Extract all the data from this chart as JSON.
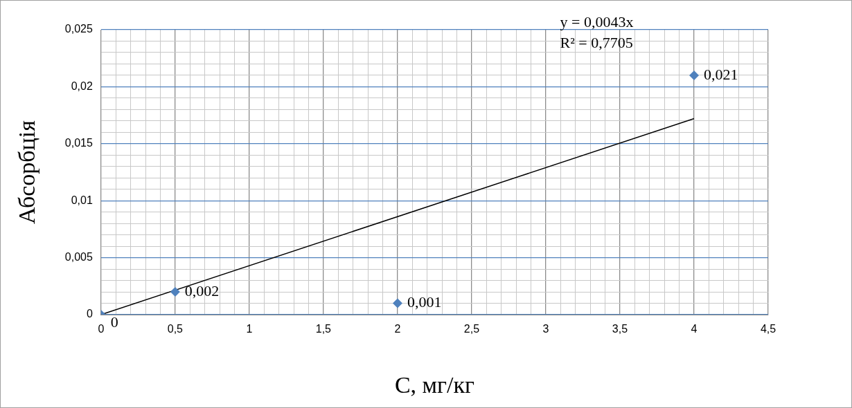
{
  "chart_data": {
    "type": "scatter",
    "xlabel": "С, мг/кг",
    "ylabel": "Абсорбція",
    "series": [
      {
        "color": "#4f81bd",
        "x": [
          0,
          0.5,
          2,
          4
        ],
        "values": [
          0,
          0.002,
          0.001,
          0.021
        ],
        "value_labels": [
          "0",
          "0,002",
          "0,001",
          "0,021"
        ],
        "marker": "diamond"
      },
      {
        "type": "line",
        "color": "#000000",
        "x": [
          0,
          4
        ],
        "values": [
          0,
          0.0172
        ],
        "marker": "none",
        "line_style": "solid"
      }
    ],
    "annotations": [
      "y = 0,0043x",
      "R² = 0,7705"
    ],
    "xlim": [
      0,
      4.5
    ],
    "xticks": [
      {
        "value": 0,
        "label": "0"
      },
      {
        "value": 0.5,
        "label": "0,5"
      },
      {
        "value": 1,
        "label": "1"
      },
      {
        "value": 1.5,
        "label": "1,5"
      },
      {
        "value": 2,
        "label": "2"
      },
      {
        "value": 2.5,
        "label": "2,5"
      },
      {
        "value": 3,
        "label": "3"
      },
      {
        "value": 3.5,
        "label": "3,5"
      },
      {
        "value": 4,
        "label": "4"
      },
      {
        "value": 4.5,
        "label": "4,5"
      },
      {
        "value": 0.1,
        "label": null
      },
      {
        "value": 0.2,
        "label": null
      },
      {
        "value": 0.3,
        "label": null
      },
      {
        "value": 0.4,
        "label": null
      },
      {
        "value": 0.6,
        "label": null
      },
      {
        "value": 0.7,
        "label": null
      },
      {
        "value": 0.8,
        "label": null
      },
      {
        "value": 0.9,
        "label": null
      },
      {
        "value": 1.1,
        "label": null
      },
      {
        "value": 1.2,
        "label": null
      },
      {
        "value": 1.3,
        "label": null
      },
      {
        "value": 1.4,
        "label": null
      },
      {
        "value": 1.6,
        "label": null
      },
      {
        "value": 1.7,
        "label": null
      },
      {
        "value": 1.8,
        "label": null
      },
      {
        "value": 1.9,
        "label": null
      },
      {
        "value": 2.1,
        "label": null
      },
      {
        "value": 2.2,
        "label": null
      },
      {
        "value": 2.3,
        "label": null
      },
      {
        "value": 2.4,
        "label": null
      },
      {
        "value": 2.6,
        "label": null
      },
      {
        "value": 2.7,
        "label": null
      },
      {
        "value": 2.8,
        "label": null
      },
      {
        "value": 2.9,
        "label": null
      },
      {
        "value": 3.1,
        "label": null
      },
      {
        "value": 3.2,
        "label": null
      },
      {
        "value": 3.3,
        "label": null
      },
      {
        "value": 3.4,
        "label": null
      },
      {
        "value": 3.6,
        "label": null
      },
      {
        "value": 3.7,
        "label": null
      },
      {
        "value": 3.8,
        "label": null
      },
      {
        "value": 3.9,
        "label": null
      },
      {
        "value": 4.1,
        "label": null
      },
      {
        "value": 4.2,
        "label": null
      },
      {
        "value": 4.3,
        "label": null
      },
      {
        "value": 4.4,
        "label": null
      }
    ],
    "ylim": [
      0,
      0.025
    ],
    "yticks": [
      {
        "value": 0,
        "label": "0"
      },
      {
        "value": 0.005,
        "label": "0,005"
      },
      {
        "value": 0.01,
        "label": "0,01"
      },
      {
        "value": 0.015,
        "label": "0,015"
      },
      {
        "value": 0.02,
        "label": "0,02"
      },
      {
        "value": 0.025,
        "label": "0,025"
      },
      {
        "value": 0.001,
        "label": null
      },
      {
        "value": 0.002,
        "label": null
      },
      {
        "value": 0.003,
        "label": null
      },
      {
        "value": 0.004,
        "label": null
      },
      {
        "value": 0.006,
        "label": null
      },
      {
        "value": 0.007,
        "label": null
      },
      {
        "value": 0.008,
        "label": null
      },
      {
        "value": 0.009,
        "label": null
      },
      {
        "value": 0.011,
        "label": null
      },
      {
        "value": 0.012,
        "label": null
      },
      {
        "value": 0.013,
        "label": null
      },
      {
        "value": 0.014,
        "label": null
      },
      {
        "value": 0.016,
        "label": null
      },
      {
        "value": 0.017,
        "label": null
      },
      {
        "value": 0.018,
        "label": null
      },
      {
        "value": 0.019,
        "label": null
      },
      {
        "value": 0.021,
        "label": null
      },
      {
        "value": 0.022,
        "label": null
      },
      {
        "value": 0.023,
        "label": null
      },
      {
        "value": 0.024,
        "label": null
      }
    ],
    "grid": true,
    "legend": false
  }
}
